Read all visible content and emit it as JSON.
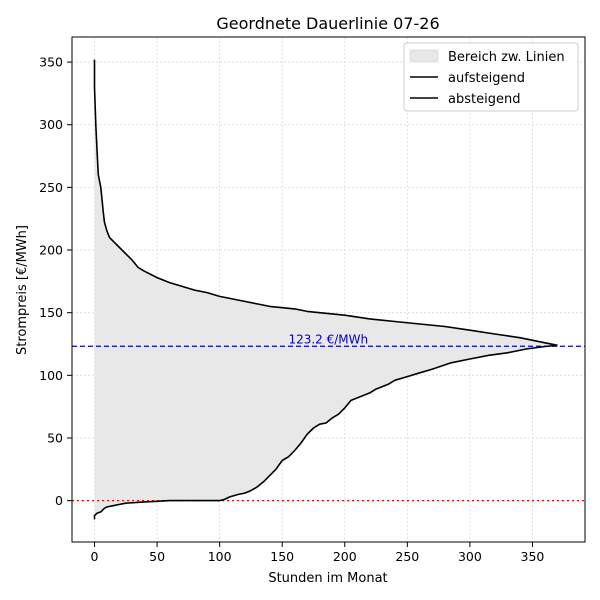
{
  "chart_data": {
    "type": "line",
    "title": "Geordnete Dauerlinie 07-26",
    "xlabel": "Stunden im Monat",
    "ylabel": "Strompreis [€/MWh]",
    "xlim": [
      -18,
      392
    ],
    "ylim": [
      -33,
      370
    ],
    "xticks": [
      0,
      50,
      100,
      150,
      200,
      250,
      300,
      350
    ],
    "yticks": [
      0,
      50,
      100,
      150,
      200,
      250,
      300,
      350
    ],
    "grid": true,
    "legend_position": "top-right",
    "fill_area": {
      "name": "Bereich zw. Linien",
      "color": "#e8e8e8"
    },
    "series": [
      {
        "name": "aufsteigend",
        "color": "#000000",
        "points": [
          [
            0,
            -15
          ],
          [
            0,
            -12
          ],
          [
            2,
            -10
          ],
          [
            5,
            -9
          ],
          [
            8,
            -6
          ],
          [
            10,
            -5
          ],
          [
            15,
            -4
          ],
          [
            20,
            -3
          ],
          [
            25,
            -2
          ],
          [
            40,
            -1
          ],
          [
            50,
            -0.5
          ],
          [
            60,
            0
          ],
          [
            100,
            0
          ],
          [
            104,
            1
          ],
          [
            108,
            3
          ],
          [
            115,
            5
          ],
          [
            120,
            6
          ],
          [
            125,
            8
          ],
          [
            130,
            11
          ],
          [
            135,
            15
          ],
          [
            140,
            20
          ],
          [
            145,
            25
          ],
          [
            150,
            32
          ],
          [
            155,
            35
          ],
          [
            160,
            40
          ],
          [
            165,
            46
          ],
          [
            170,
            53
          ],
          [
            175,
            58
          ],
          [
            180,
            61
          ],
          [
            185,
            62
          ],
          [
            190,
            66
          ],
          [
            195,
            69
          ],
          [
            200,
            74
          ],
          [
            205,
            80
          ],
          [
            210,
            82
          ],
          [
            215,
            84
          ],
          [
            220,
            86
          ],
          [
            225,
            89
          ],
          [
            235,
            93
          ],
          [
            240,
            96
          ],
          [
            250,
            99
          ],
          [
            260,
            102
          ],
          [
            270,
            105
          ],
          [
            285,
            110
          ],
          [
            300,
            113
          ],
          [
            315,
            116
          ],
          [
            330,
            118
          ],
          [
            345,
            121
          ],
          [
            360,
            123
          ],
          [
            370,
            124
          ]
        ]
      },
      {
        "name": "absteigend",
        "color": "#000000",
        "points": [
          [
            0,
            352
          ],
          [
            0,
            330
          ],
          [
            1,
            300
          ],
          [
            2,
            280
          ],
          [
            3,
            260
          ],
          [
            5,
            250
          ],
          [
            7,
            230
          ],
          [
            8,
            222
          ],
          [
            10,
            215
          ],
          [
            12,
            210
          ],
          [
            15,
            207
          ],
          [
            20,
            202
          ],
          [
            25,
            197
          ],
          [
            30,
            192
          ],
          [
            35,
            186
          ],
          [
            40,
            183
          ],
          [
            50,
            178
          ],
          [
            55,
            176
          ],
          [
            60,
            174
          ],
          [
            70,
            171
          ],
          [
            80,
            168
          ],
          [
            90,
            166
          ],
          [
            100,
            163
          ],
          [
            110,
            161
          ],
          [
            120,
            159
          ],
          [
            130,
            157
          ],
          [
            140,
            155
          ],
          [
            150,
            154
          ],
          [
            160,
            153
          ],
          [
            170,
            151
          ],
          [
            180,
            150
          ],
          [
            200,
            148
          ],
          [
            220,
            145
          ],
          [
            240,
            143
          ],
          [
            260,
            141
          ],
          [
            280,
            139
          ],
          [
            300,
            136
          ],
          [
            320,
            133
          ],
          [
            340,
            130
          ],
          [
            360,
            126
          ],
          [
            370,
            124
          ]
        ]
      }
    ],
    "reference_lines": [
      {
        "orientation": "horizontal",
        "y": 123.2,
        "color": "#0000cc",
        "style": "dashed",
        "label": "123.2 €/MWh"
      },
      {
        "orientation": "horizontal",
        "y": 0,
        "color": "#ff0000",
        "style": "dotted"
      }
    ]
  }
}
